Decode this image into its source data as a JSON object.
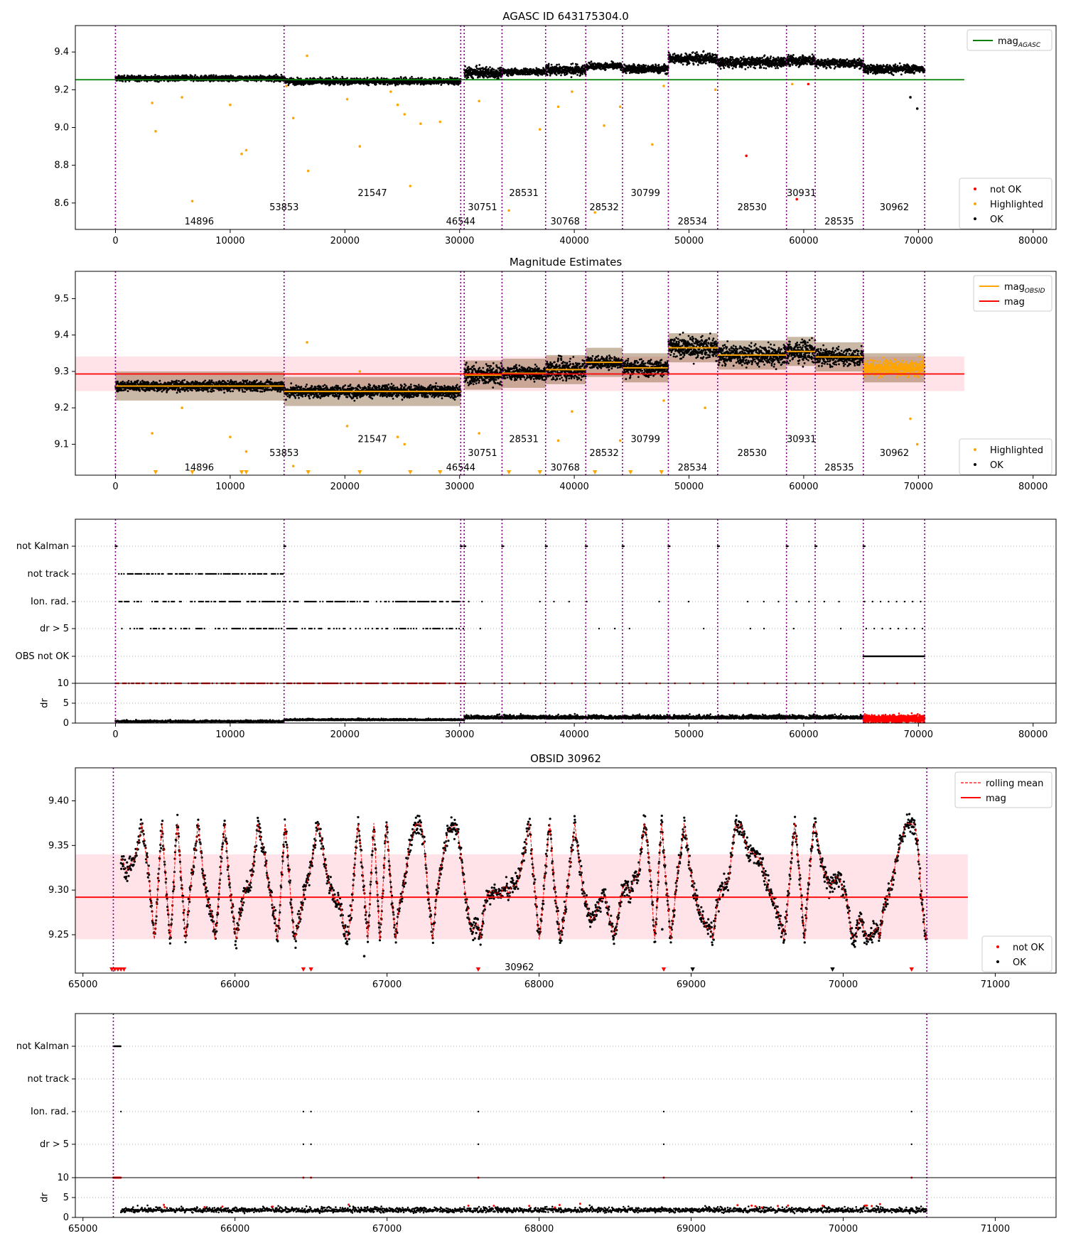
{
  "colors": {
    "ok": "#000000",
    "not_ok": "#ff0000",
    "highlighted": "#ffa500",
    "mag_agasc_line": "#008000",
    "mag_line": "#ff0000",
    "mag_obsid_line": "#ffa500",
    "band": "#ffc0cb",
    "obsid_divider": "#800080"
  },
  "chart_data": [
    {
      "id": "agasc",
      "type": "scatter",
      "title": "AGASC ID 643175304.0",
      "xlim": [
        -3500,
        82000
      ],
      "ylim": [
        8.46,
        9.54
      ],
      "xticks": [
        0,
        10000,
        20000,
        30000,
        40000,
        50000,
        60000,
        70000,
        80000
      ],
      "yticks": [
        8.6,
        8.8,
        9.0,
        9.2,
        9.4
      ],
      "ytick_labels": [
        "8.6",
        "8.8",
        "9.0",
        "9.2",
        "9.4"
      ],
      "mag_agasc": 9.253,
      "mag_line_xrange": [
        -3500,
        74000
      ],
      "obsid_boundaries": [
        0,
        14700,
        30100,
        30400,
        33700,
        37500,
        41000,
        44200,
        48200,
        52500,
        58500,
        61000,
        65200,
        70550
      ],
      "segments": [
        {
          "x0": 0,
          "x1": 14700,
          "level": 9.26,
          "spread": 0.025
        },
        {
          "x0": 14700,
          "x1": 30100,
          "level": 9.245,
          "spread": 0.03
        },
        {
          "x0": 30400,
          "x1": 33700,
          "level": 9.29,
          "spread": 0.05
        },
        {
          "x0": 33700,
          "x1": 37500,
          "level": 9.295,
          "spread": 0.03
        },
        {
          "x0": 37500,
          "x1": 41000,
          "level": 9.305,
          "spread": 0.05
        },
        {
          "x0": 41000,
          "x1": 44200,
          "level": 9.325,
          "spread": 0.03
        },
        {
          "x0": 44200,
          "x1": 48200,
          "level": 9.31,
          "spread": 0.04
        },
        {
          "x0": 48200,
          "x1": 52500,
          "level": 9.365,
          "spread": 0.05
        },
        {
          "x0": 52500,
          "x1": 58500,
          "level": 9.345,
          "spread": 0.05
        },
        {
          "x0": 58500,
          "x1": 61000,
          "level": 9.355,
          "spread": 0.05
        },
        {
          "x0": 61000,
          "x1": 65200,
          "level": 9.34,
          "spread": 0.04
        },
        {
          "x0": 65200,
          "x1": 70550,
          "level": 9.31,
          "spread": 0.04
        }
      ],
      "obsid_labels": [
        {
          "text": "14896",
          "x": 7300,
          "y": 8.5
        },
        {
          "text": "53853",
          "x": 14700,
          "y": 8.575
        },
        {
          "text": "21547",
          "x": 22400,
          "y": 8.65
        },
        {
          "text": "46544",
          "x": 30100,
          "y": 8.5
        },
        {
          "text": "30751",
          "x": 32000,
          "y": 8.575
        },
        {
          "text": "28531",
          "x": 35600,
          "y": 8.65
        },
        {
          "text": "30768",
          "x": 39200,
          "y": 8.5
        },
        {
          "text": "28532",
          "x": 42600,
          "y": 8.575
        },
        {
          "text": "30799",
          "x": 46200,
          "y": 8.65
        },
        {
          "text": "28534",
          "x": 50300,
          "y": 8.5
        },
        {
          "text": "28530",
          "x": 55500,
          "y": 8.575
        },
        {
          "text": "30931",
          "x": 59800,
          "y": 8.65
        },
        {
          "text": "28535",
          "x": 63100,
          "y": 8.5
        },
        {
          "text": "30962",
          "x": 67900,
          "y": 8.575
        }
      ],
      "outliers_highlighted": [
        [
          3200,
          9.13
        ],
        [
          3500,
          8.98
        ],
        [
          5800,
          9.16
        ],
        [
          6700,
          8.61
        ],
        [
          10000,
          9.12
        ],
        [
          11000,
          8.86
        ],
        [
          11400,
          8.88
        ],
        [
          14900,
          9.22
        ],
        [
          15500,
          9.05
        ],
        [
          16700,
          9.38
        ],
        [
          16800,
          8.77
        ],
        [
          20200,
          9.15
        ],
        [
          21300,
          8.9
        ],
        [
          24000,
          9.19
        ],
        [
          24600,
          9.12
        ],
        [
          25200,
          9.07
        ],
        [
          25700,
          8.69
        ],
        [
          26600,
          9.02
        ],
        [
          28300,
          9.03
        ],
        [
          31700,
          9.14
        ],
        [
          34300,
          8.56
        ],
        [
          37000,
          8.99
        ],
        [
          38600,
          9.11
        ],
        [
          39800,
          9.19
        ],
        [
          41800,
          8.55
        ],
        [
          42600,
          9.01
        ],
        [
          44000,
          9.11
        ],
        [
          46800,
          8.91
        ],
        [
          47800,
          9.22
        ],
        [
          52300,
          9.2
        ],
        [
          59000,
          9.23
        ]
      ],
      "outliers_not_ok": [
        [
          55000,
          8.85
        ],
        [
          59400,
          8.62
        ],
        [
          60400,
          9.23
        ]
      ],
      "outliers_ok": [
        [
          69300,
          9.16
        ],
        [
          69900,
          9.1
        ]
      ],
      "legend_lines": [
        {
          "label": "mag",
          "label_subscript": "AGASC",
          "color_key": "mag_agasc_line"
        }
      ],
      "legend_points": [
        {
          "label": "not OK",
          "color_key": "not_ok"
        },
        {
          "label": "Highlighted",
          "color_key": "highlighted"
        },
        {
          "label": "OK",
          "color_key": "ok"
        }
      ]
    },
    {
      "id": "estimates",
      "type": "scatter",
      "title": "Magnitude Estimates",
      "xlim": [
        -3500,
        82000
      ],
      "ylim": [
        9.015,
        9.575
      ],
      "xticks": [
        0,
        10000,
        20000,
        30000,
        40000,
        50000,
        60000,
        70000,
        80000
      ],
      "yticks": [
        9.1,
        9.2,
        9.3,
        9.4,
        9.5
      ],
      "ytick_labels": [
        "9.1",
        "9.2",
        "9.3",
        "9.4",
        "9.5"
      ],
      "mag": 9.293,
      "band": [
        9.246,
        9.341
      ],
      "mag_line_xrange": [
        -3500,
        74000
      ],
      "obsid_labels": [
        {
          "text": "14896",
          "x": 7300,
          "y": 9.035
        },
        {
          "text": "53853",
          "x": 14700,
          "y": 9.075
        },
        {
          "text": "21547",
          "x": 22400,
          "y": 9.113
        },
        {
          "text": "46544",
          "x": 30100,
          "y": 9.035
        },
        {
          "text": "30751",
          "x": 32000,
          "y": 9.075
        },
        {
          "text": "28531",
          "x": 35600,
          "y": 9.113
        },
        {
          "text": "30768",
          "x": 39200,
          "y": 9.035
        },
        {
          "text": "28532",
          "x": 42600,
          "y": 9.075
        },
        {
          "text": "30799",
          "x": 46200,
          "y": 9.113
        },
        {
          "text": "28534",
          "x": 50300,
          "y": 9.035
        },
        {
          "text": "28530",
          "x": 55500,
          "y": 9.075
        },
        {
          "text": "30931",
          "x": 59800,
          "y": 9.113
        },
        {
          "text": "28535",
          "x": 63100,
          "y": 9.035
        },
        {
          "text": "30962",
          "x": 67900,
          "y": 9.075
        }
      ],
      "outliers_highlighted": [
        [
          3200,
          9.13
        ],
        [
          5800,
          9.2
        ],
        [
          10000,
          9.12
        ],
        [
          11400,
          9.08
        ],
        [
          15500,
          9.04
        ],
        [
          16700,
          9.38
        ],
        [
          20200,
          9.15
        ],
        [
          21300,
          9.3
        ],
        [
          24600,
          9.12
        ],
        [
          25200,
          9.1
        ],
        [
          31700,
          9.13
        ],
        [
          38600,
          9.11
        ],
        [
          39800,
          9.19
        ],
        [
          44000,
          9.11
        ],
        [
          47800,
          9.22
        ],
        [
          51400,
          9.2
        ],
        [
          69300,
          9.17
        ],
        [
          69900,
          9.1
        ]
      ],
      "triangles_highlighted": [
        3500,
        6700,
        11000,
        11400,
        16800,
        21300,
        25700,
        28300,
        34300,
        37000,
        41800,
        44900,
        47600
      ],
      "triangles_not_ok": [],
      "legend_lines": [
        {
          "label": "mag",
          "label_subscript": "OBSID",
          "color_key": "mag_obsid_line"
        },
        {
          "label": "mag",
          "label_subscript": "",
          "color_key": "mag_line"
        }
      ],
      "legend_points": [
        {
          "label": "Highlighted",
          "color_key": "highlighted"
        },
        {
          "label": "OK",
          "color_key": "ok"
        }
      ]
    },
    {
      "id": "flags_full",
      "type": "scatter",
      "xlim": [
        -3500,
        82000
      ],
      "xticks": [
        0,
        10000,
        20000,
        30000,
        40000,
        50000,
        60000,
        70000,
        80000
      ],
      "flag_categories": [
        "not Kalman",
        "not track",
        "Ion. rad.",
        "dr > 5",
        "OBS not OK"
      ],
      "dr_ylim": [
        0,
        10
      ],
      "dr_yticks": [
        0,
        5,
        10
      ],
      "dr_ytick_labels": [
        "0",
        "5",
        "10"
      ],
      "dr_ylabel": "dr"
    },
    {
      "id": "obsid",
      "type": "scatter",
      "title": "OBSID 30962",
      "xlim": [
        64950,
        71400
      ],
      "ylim": [
        9.207,
        9.437
      ],
      "xticks": [
        65000,
        66000,
        67000,
        68000,
        69000,
        70000,
        71000
      ],
      "yticks": [
        9.25,
        9.3,
        9.35,
        9.4
      ],
      "ytick_labels": [
        "9.25",
        "9.30",
        "9.35",
        "9.40"
      ],
      "mag": 9.292,
      "band": [
        9.245,
        9.34
      ],
      "mag_line_xrange": [
        64950,
        70820
      ],
      "data_xrange": [
        65250,
        70550
      ],
      "obsid_boundaries": [
        65200,
        70550
      ],
      "obsid_labels": [
        {
          "text": "30962",
          "x": 67870,
          "y": 9.213
        }
      ],
      "outliers_ok": [
        [
          66850,
          9.226
        ],
        [
          68810,
          9.256
        ]
      ],
      "triangles_not_ok": [
        65190,
        65210,
        65230,
        65250,
        65270,
        66450,
        66500,
        67600,
        68820,
        70450
      ],
      "triangles_ok": [
        69010,
        69930
      ],
      "legend_lines": [
        {
          "label": "rolling mean",
          "label_subscript": "",
          "color_key": "mag_line",
          "dashed": true
        },
        {
          "label": "mag",
          "label_subscript": "",
          "color_key": "mag_line"
        }
      ],
      "legend_points": [
        {
          "label": "not OK",
          "color_key": "not_ok"
        },
        {
          "label": "OK",
          "color_key": "ok"
        }
      ]
    },
    {
      "id": "flags_obsid",
      "type": "scatter",
      "xlim": [
        64950,
        71400
      ],
      "xticks": [
        65000,
        66000,
        67000,
        68000,
        69000,
        70000,
        71000
      ],
      "flag_categories": [
        "not Kalman",
        "not track",
        "Ion. rad.",
        "dr > 5"
      ],
      "dr_ylim": [
        0,
        10
      ],
      "dr_yticks": [
        0,
        5,
        10
      ],
      "dr_ytick_labels": [
        "0",
        "5",
        "10"
      ],
      "dr_ylabel": "dr",
      "ion_rad_points": [
        65250,
        66450,
        66500,
        67600,
        68820,
        70450
      ],
      "dr5_points": [
        66450,
        66500,
        67600,
        68820,
        70450
      ]
    }
  ]
}
